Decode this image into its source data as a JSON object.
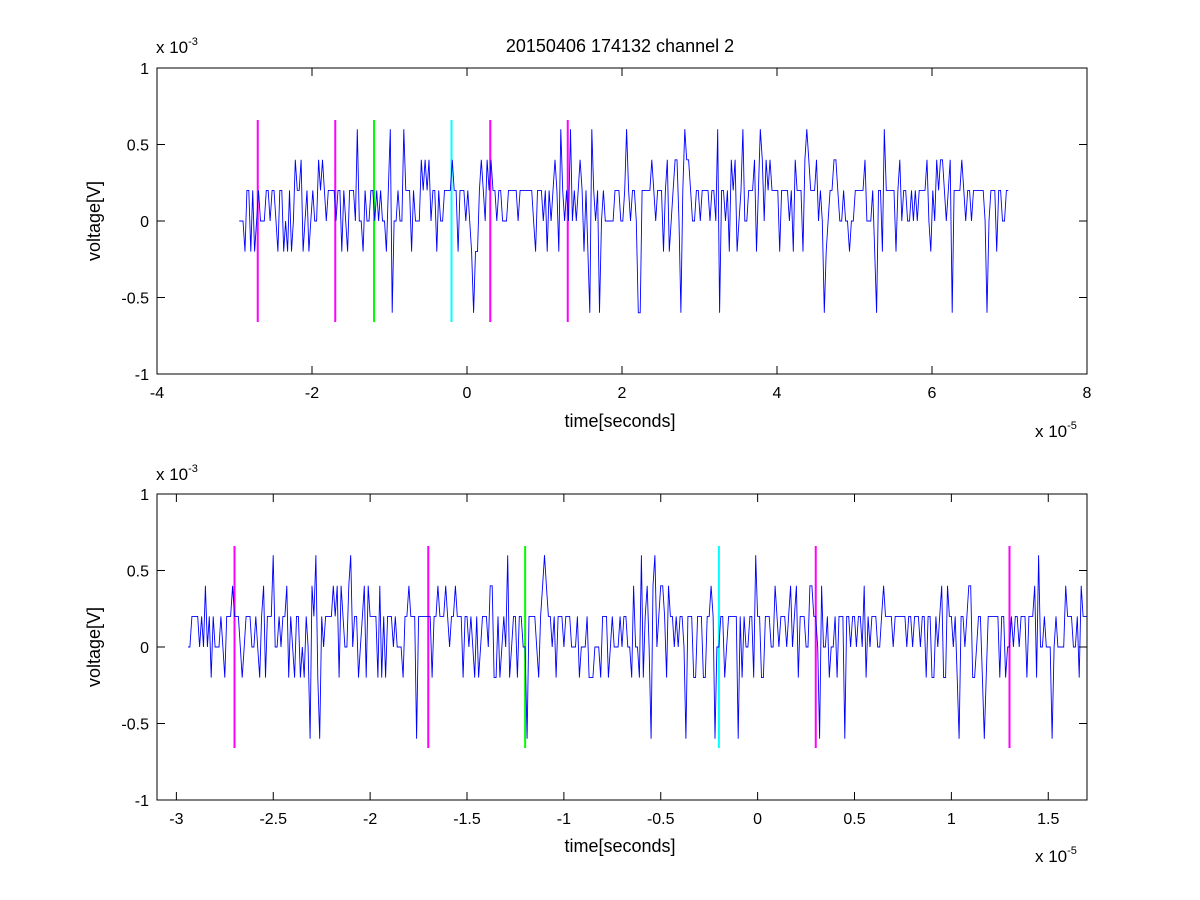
{
  "figure": {
    "background": "#ffffff"
  },
  "chart_data": [
    {
      "type": "line",
      "title": "20150406 174132 channel 2",
      "xlabel": "time[seconds]",
      "ylabel": "voltage[V]",
      "xlim": [
        -4,
        8
      ],
      "ylim": [
        -1,
        1
      ],
      "x_multiplier": {
        "base": "x 10",
        "exp": "-5"
      },
      "y_multiplier": {
        "base": "x 10",
        "exp": "-3"
      },
      "x_ticks": [
        {
          "v": -4,
          "label": "-4"
        },
        {
          "v": -2,
          "label": "-2"
        },
        {
          "v": 0,
          "label": "0"
        },
        {
          "v": 2,
          "label": "2"
        },
        {
          "v": 4,
          "label": "4"
        },
        {
          "v": 6,
          "label": "6"
        },
        {
          "v": 8,
          "label": "8"
        }
      ],
      "y_ticks": [
        {
          "v": -1,
          "label": "-1"
        },
        {
          "v": -0.5,
          "label": "-0.5"
        },
        {
          "v": 0,
          "label": "0"
        },
        {
          "v": 0.5,
          "label": "0.5"
        },
        {
          "v": 1,
          "label": "1"
        }
      ],
      "grid": false,
      "series": [
        {
          "color": "#0000ff",
          "x_range": [
            -2.94,
            7.0
          ],
          "dx": 0.025,
          "seed": 11,
          "y_levels": [
            -0.6,
            -0.2,
            0,
            0.2,
            0.4,
            0.6
          ]
        }
      ],
      "markers": [
        {
          "x": -2.7,
          "ymin": -0.66,
          "ymax": 0.66,
          "color": "#ff00ff"
        },
        {
          "x": -1.7,
          "ymin": -0.66,
          "ymax": 0.66,
          "color": "#ff00ff"
        },
        {
          "x": -1.2,
          "ymin": -0.66,
          "ymax": 0.66,
          "color": "#00ff00"
        },
        {
          "x": -0.2,
          "ymin": -0.66,
          "ymax": 0.66,
          "color": "#00ffff"
        },
        {
          "x": 0.3,
          "ymin": -0.66,
          "ymax": 0.66,
          "color": "#ff00ff"
        },
        {
          "x": 1.3,
          "ymin": -0.66,
          "ymax": 0.66,
          "color": "#ff00ff"
        }
      ]
    },
    {
      "type": "line",
      "title": "",
      "xlabel": "time[seconds]",
      "ylabel": "voltage[V]",
      "xlim": [
        -3.1,
        1.7
      ],
      "ylim": [
        -1,
        1
      ],
      "x_multiplier": {
        "base": "x 10",
        "exp": "-5"
      },
      "y_multiplier": {
        "base": "x 10",
        "exp": "-3"
      },
      "x_ticks": [
        {
          "v": -3,
          "label": "-3"
        },
        {
          "v": -2.5,
          "label": "-2.5"
        },
        {
          "v": -2,
          "label": "-2"
        },
        {
          "v": -1.5,
          "label": "-1.5"
        },
        {
          "v": -1,
          "label": "-1"
        },
        {
          "v": -0.5,
          "label": "-0.5"
        },
        {
          "v": 0,
          "label": "0"
        },
        {
          "v": 0.5,
          "label": "0.5"
        },
        {
          "v": 1,
          "label": "1"
        },
        {
          "v": 1.5,
          "label": "1.5"
        }
      ],
      "y_ticks": [
        {
          "v": -1,
          "label": "-1"
        },
        {
          "v": -0.5,
          "label": "-0.5"
        },
        {
          "v": 0,
          "label": "0"
        },
        {
          "v": 0.5,
          "label": "0.5"
        },
        {
          "v": 1,
          "label": "1"
        }
      ],
      "grid": false,
      "series": [
        {
          "color": "#0000ff",
          "x_range": [
            -2.94,
            1.7
          ],
          "dx": 0.01,
          "seed": 23,
          "y_levels": [
            -0.6,
            -0.2,
            0,
            0.2,
            0.4,
            0.6
          ]
        }
      ],
      "markers": [
        {
          "x": -2.7,
          "ymin": -0.66,
          "ymax": 0.66,
          "color": "#ff00ff"
        },
        {
          "x": -1.7,
          "ymin": -0.66,
          "ymax": 0.66,
          "color": "#ff00ff"
        },
        {
          "x": -1.2,
          "ymin": -0.66,
          "ymax": 0.66,
          "color": "#00ff00"
        },
        {
          "x": -0.2,
          "ymin": -0.66,
          "ymax": 0.66,
          "color": "#00ffff"
        },
        {
          "x": 0.3,
          "ymin": -0.66,
          "ymax": 0.66,
          "color": "#ff00ff"
        },
        {
          "x": 1.3,
          "ymin": -0.66,
          "ymax": 0.66,
          "color": "#ff00ff"
        }
      ]
    }
  ]
}
